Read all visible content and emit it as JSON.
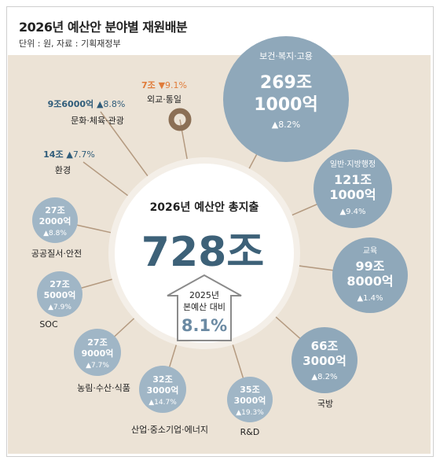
{
  "header": {
    "title": "2026년 예산안 분야별 재원배분",
    "source": "단위 : 원, 자료 : 기획재정부"
  },
  "center": {
    "label": "2026년 예산안 총지출",
    "total": "728조",
    "arrow_line1": "2025년",
    "arrow_line2": "본예산 대비",
    "growth": "8.1%"
  },
  "colors": {
    "background": "#ece3d6",
    "bubble": "#8fa8ba",
    "small_bubble": "#a0b6c6",
    "navy_text": "#2f5c7a",
    "brown": "#8b6f55",
    "orange": "#e07b39",
    "center_text": "#3d6178"
  },
  "chart_data": {
    "type": "bubble",
    "title": "2026년 예산안 분야별 재원배분",
    "unit": "원",
    "total": "728조",
    "total_growth_vs_2025": "8.1%",
    "categories": [
      "보건·복지·고용",
      "일반·지방행정",
      "교육",
      "국방",
      "R&D",
      "산업·중소기업·에너지",
      "농림·수산·식품",
      "SOC",
      "공공질서·안전",
      "환경",
      "문화·체육·관광",
      "외교·통일"
    ],
    "amounts": [
      "269조 1000억",
      "121조 1000억",
      "99조 8000억",
      "66조 3000억",
      "35조 3000억",
      "32조 3000억",
      "27조 9000억",
      "27조 5000억",
      "27조 2000억",
      "14조",
      "9조6000억",
      "7조"
    ],
    "values": [
      269.1,
      121.1,
      99.8,
      66.3,
      35.3,
      32.3,
      27.9,
      27.5,
      27.2,
      14.0,
      9.6,
      7.0
    ],
    "changes": [
      "▲8.2%",
      "▲9.4%",
      "▲1.4%",
      "▲8.2%",
      "▲19.3%",
      "▲14.7%",
      "▲7.7%",
      "▲7.9%",
      "▲8.8%",
      "▲7.7%",
      "▲8.8%",
      "▼9.1%"
    ],
    "value_unit": "조원"
  }
}
